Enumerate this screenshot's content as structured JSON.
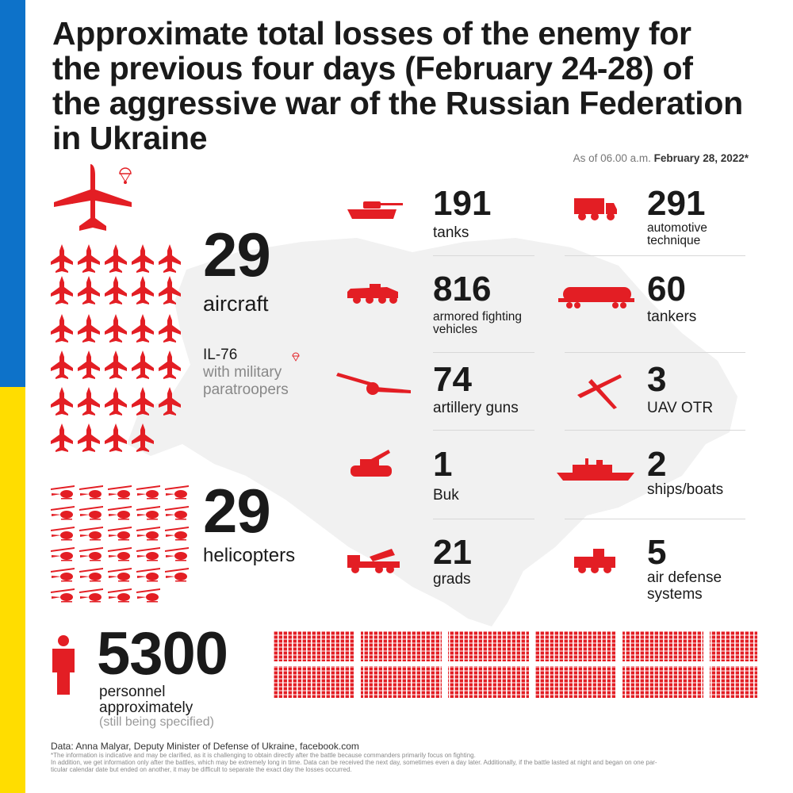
{
  "title": "Approximate total losses of the enemy for\nthe previous four days (February 24-28) of\nthe aggressive war of the Russian Federation\nin Ukraine",
  "as_of": {
    "prefix": "As of 06.00 a.m.",
    "date": "February 28, 2022*"
  },
  "aircraft": {
    "value": "29",
    "label": "aircraft",
    "icon": "fighter-jet-icon"
  },
  "il76": {
    "line1": "IL-76",
    "line2": "with military",
    "line3": "paratroopers",
    "icon": "transport-plane-icon"
  },
  "helicopters": {
    "value": "29",
    "label": "helicopters",
    "icon": "helicopter-icon"
  },
  "personnel": {
    "value": "5300",
    "label1": "personnel",
    "label2": "approximately",
    "note": "(still being specified)",
    "icon": "person-icon"
  },
  "left_column": [
    {
      "value": "191",
      "label": "tanks",
      "icon": "tank-icon"
    },
    {
      "value": "816",
      "label": "armored fighting vehicles",
      "icon": "apc-icon"
    },
    {
      "value": "74",
      "label": "artillery guns",
      "icon": "artillery-icon"
    },
    {
      "value": "1",
      "label": "Buk",
      "icon": "buk-icon"
    },
    {
      "value": "21",
      "label": "grads",
      "icon": "mlrs-icon"
    }
  ],
  "right_column": [
    {
      "value": "291",
      "label": "automotive technique",
      "icon": "truck-icon"
    },
    {
      "value": "60",
      "label": "tankers",
      "icon": "fuel-tanker-icon"
    },
    {
      "value": "3",
      "label": "UAV OTR",
      "icon": "drone-icon"
    },
    {
      "value": "2",
      "label": "ships/boats",
      "icon": "ship-icon"
    },
    {
      "value": "5",
      "label": "air defense systems",
      "icon": "air-defense-icon"
    }
  ],
  "footer": {
    "source": "Data: Anna Malyar, Deputy Minister of Defense of Ukraine, facebook.com",
    "note1": "*The information is indicative and may be clarified, as it is challenging to obtain directly after the battle because commanders primarily focus on fighting.",
    "note2": "In addition, we get information only after the battles, which may be extremely long in time. Data can be received the next day, sometimes even a day later. Additionally, if the battle lasted at night and began on one par-",
    "note3": "ticular calendar date but ended on another, it may be difficult to separate the exact day the losses occurred."
  },
  "colors": {
    "accent": "#e31e24",
    "flag_blue": "#0d72c9",
    "flag_yellow": "#ffdd00",
    "text": "#1a1a1a"
  }
}
